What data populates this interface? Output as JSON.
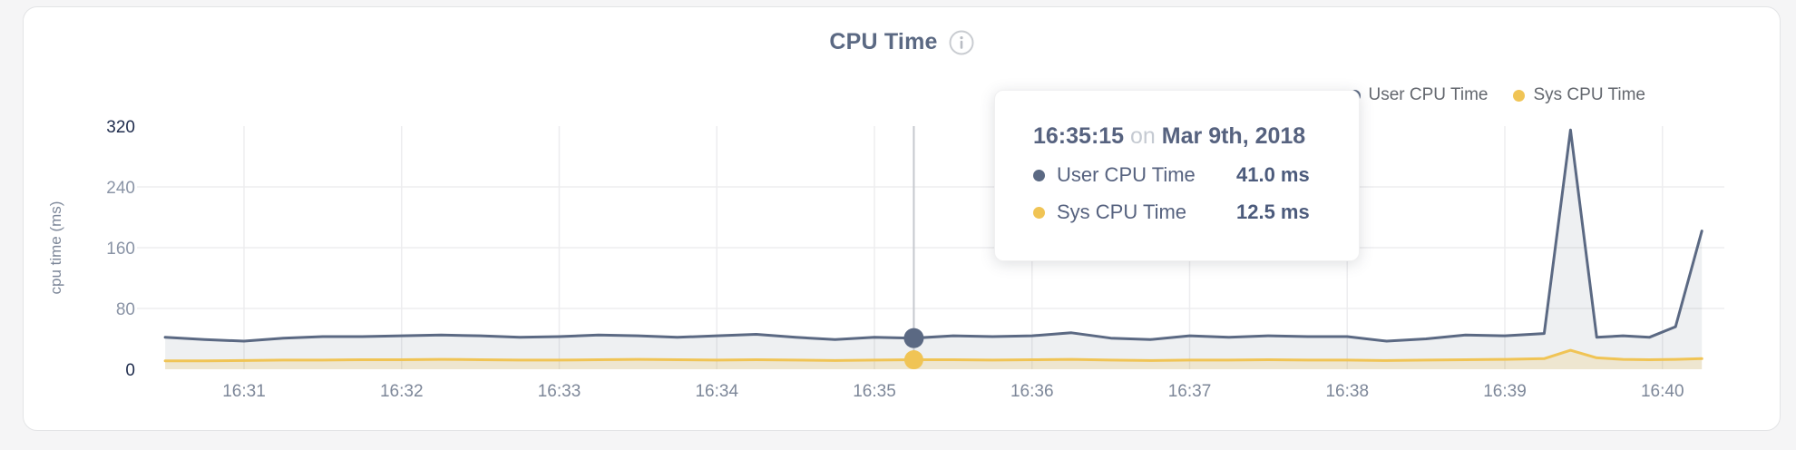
{
  "page": {
    "background": "#f5f5f6"
  },
  "header": {
    "title": "CPU Time"
  },
  "legend": {
    "items": [
      {
        "label": "User CPU Time",
        "color": "#5b6983"
      },
      {
        "label": "Sys CPU Time",
        "color": "#f0c455"
      }
    ]
  },
  "tooltip": {
    "time": "16:35:15",
    "conjunction": "on",
    "date": "Mar 9th, 2018",
    "rows": [
      {
        "label": "User CPU Time",
        "value": "41.0 ms",
        "color": "#5b6983"
      },
      {
        "label": "Sys CPU Time",
        "value": "12.5 ms",
        "color": "#f0c455"
      }
    ]
  },
  "chart_data": {
    "type": "area",
    "title": "CPU Time",
    "xlabel": "",
    "ylabel": "cpu time (ms)",
    "ylim": [
      0,
      320
    ],
    "yticks": [
      0,
      80,
      160,
      240,
      320
    ],
    "ytick_emphasized": [
      0,
      320
    ],
    "grid_yticks": [
      80,
      160,
      240
    ],
    "grid": true,
    "legend_position": "top-right",
    "x_unit": "minutes after 16:30",
    "x_minute_labels": [
      "16:31",
      "16:32",
      "16:33",
      "16:34",
      "16:35",
      "16:36",
      "16:37",
      "16:38",
      "16:39",
      "16:40"
    ],
    "x_minute_values": [
      1,
      2,
      3,
      4,
      5,
      6,
      7,
      8,
      9,
      10
    ],
    "hover": {
      "t": 5.25,
      "time_label": "16:35:15",
      "user_value": 41.0,
      "sys_value": 12.5
    },
    "series": [
      {
        "name": "User CPU Time",
        "color": "#5b6983",
        "fill": "rgba(91,105,131,0.10)",
        "points": [
          [
            0.5,
            42
          ],
          [
            0.75,
            39
          ],
          [
            1.0,
            37
          ],
          [
            1.25,
            41
          ],
          [
            1.5,
            43
          ],
          [
            1.75,
            43
          ],
          [
            2.0,
            44
          ],
          [
            2.25,
            45
          ],
          [
            2.5,
            44
          ],
          [
            2.75,
            42
          ],
          [
            3.0,
            43
          ],
          [
            3.25,
            45
          ],
          [
            3.5,
            44
          ],
          [
            3.75,
            42
          ],
          [
            4.0,
            44
          ],
          [
            4.25,
            46
          ],
          [
            4.5,
            42
          ],
          [
            4.75,
            39
          ],
          [
            5.0,
            42
          ],
          [
            5.25,
            41
          ],
          [
            5.5,
            44
          ],
          [
            5.75,
            43
          ],
          [
            6.0,
            44
          ],
          [
            6.25,
            48
          ],
          [
            6.5,
            41
          ],
          [
            6.75,
            39
          ],
          [
            7.0,
            44
          ],
          [
            7.25,
            42
          ],
          [
            7.5,
            44
          ],
          [
            7.75,
            43
          ],
          [
            8.0,
            43
          ],
          [
            8.25,
            37
          ],
          [
            8.5,
            40
          ],
          [
            8.75,
            45
          ],
          [
            9.0,
            44
          ],
          [
            9.25,
            47
          ],
          [
            9.4167,
            315
          ],
          [
            9.5833,
            42
          ],
          [
            9.75,
            44
          ],
          [
            9.9167,
            42
          ],
          [
            10.0833,
            56
          ],
          [
            10.25,
            182
          ]
        ]
      },
      {
        "name": "Sys CPU Time",
        "color": "#f0c455",
        "fill": "rgba(240,196,85,0.22)",
        "points": [
          [
            0.5,
            11
          ],
          [
            0.75,
            11
          ],
          [
            1.0,
            11.5
          ],
          [
            1.25,
            12
          ],
          [
            1.5,
            12
          ],
          [
            1.75,
            12.5
          ],
          [
            2.0,
            12.5
          ],
          [
            2.25,
            13
          ],
          [
            2.5,
            12.5
          ],
          [
            2.75,
            12
          ],
          [
            3.0,
            12
          ],
          [
            3.25,
            12.5
          ],
          [
            3.5,
            13
          ],
          [
            3.75,
            12.5
          ],
          [
            4.0,
            12
          ],
          [
            4.25,
            12.5
          ],
          [
            4.5,
            12
          ],
          [
            4.75,
            11.5
          ],
          [
            5.0,
            12
          ],
          [
            5.25,
            12.5
          ],
          [
            5.5,
            12.5
          ],
          [
            5.75,
            12
          ],
          [
            6.0,
            12.5
          ],
          [
            6.25,
            13
          ],
          [
            6.5,
            12
          ],
          [
            6.75,
            11.5
          ],
          [
            7.0,
            12
          ],
          [
            7.25,
            12
          ],
          [
            7.5,
            12.5
          ],
          [
            7.75,
            12
          ],
          [
            8.0,
            12
          ],
          [
            8.25,
            11.5
          ],
          [
            8.5,
            12
          ],
          [
            8.75,
            12.5
          ],
          [
            9.0,
            13
          ],
          [
            9.25,
            14
          ],
          [
            9.4167,
            25
          ],
          [
            9.5833,
            15
          ],
          [
            9.75,
            13
          ],
          [
            9.9167,
            12.5
          ],
          [
            10.0833,
            13
          ],
          [
            10.25,
            14
          ]
        ]
      }
    ],
    "style": {
      "grid_color": "#ededef",
      "tick_color": "#8a94a6",
      "tick_emphasized_color": "#1f2c4d",
      "xtick_color": "#7d8799",
      "axis_label_color": "#7d8799",
      "hover_line_color": "#c6c9ce"
    }
  }
}
